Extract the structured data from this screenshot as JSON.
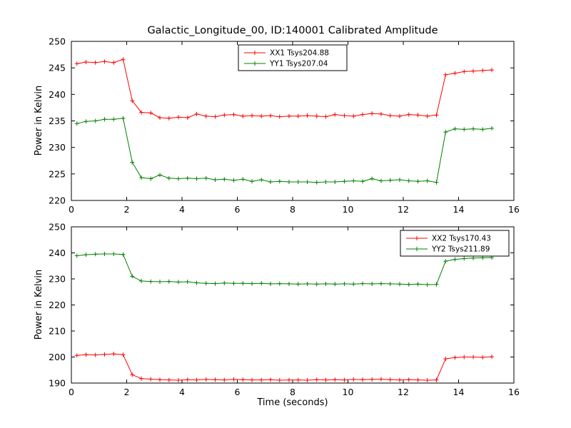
{
  "figure": {
    "title": "Galactic_Longitude_00, ID:140001 Calibrated Amplitude",
    "xlabel": "Time (seconds)",
    "background": "#ffffff",
    "axis_color": "#000000"
  },
  "chart_data": [
    {
      "type": "line",
      "ylabel": "Power in Kelvin",
      "xlim": [
        0,
        16
      ],
      "ylim": [
        220,
        250
      ],
      "xticks": [
        0,
        2,
        4,
        6,
        8,
        10,
        12,
        14,
        16
      ],
      "yticks": [
        220,
        225,
        230,
        235,
        240,
        245,
        250
      ],
      "grid": false,
      "legend_position": "upper center",
      "marker": "+",
      "x": [
        0.2,
        0.53,
        0.87,
        1.2,
        1.53,
        1.87,
        2.2,
        2.53,
        2.87,
        3.2,
        3.53,
        3.87,
        4.2,
        4.53,
        4.87,
        5.2,
        5.53,
        5.87,
        6.2,
        6.53,
        6.87,
        7.2,
        7.53,
        7.87,
        8.2,
        8.53,
        8.87,
        9.2,
        9.53,
        9.87,
        10.2,
        10.53,
        10.87,
        11.2,
        11.53,
        11.87,
        12.2,
        12.53,
        12.87,
        13.2,
        13.53,
        13.87,
        14.2,
        14.53,
        14.87,
        15.2
      ],
      "series": [
        {
          "name": "XX1 Tsys204.88",
          "color": "#ff0000",
          "values": [
            245.8,
            246.1,
            246.0,
            246.2,
            246.0,
            246.6,
            238.8,
            236.6,
            236.5,
            235.6,
            235.5,
            235.7,
            235.6,
            236.3,
            235.9,
            235.8,
            236.1,
            236.2,
            235.9,
            236.0,
            235.9,
            236.0,
            235.8,
            235.9,
            235.9,
            236.0,
            235.9,
            235.8,
            236.2,
            236.0,
            235.9,
            236.2,
            236.4,
            236.3,
            236.0,
            235.9,
            236.2,
            236.1,
            235.9,
            236.1,
            243.7,
            244.0,
            244.3,
            244.4,
            244.5,
            244.6
          ]
        },
        {
          "name": "YY1 Tsys207.04",
          "color": "#008000",
          "values": [
            234.5,
            234.9,
            235.0,
            235.3,
            235.3,
            235.5,
            227.2,
            224.3,
            224.1,
            224.8,
            224.2,
            224.1,
            224.2,
            224.1,
            224.2,
            223.9,
            224.0,
            223.8,
            224.0,
            223.6,
            223.9,
            223.5,
            223.6,
            223.5,
            223.5,
            223.5,
            223.4,
            223.5,
            223.5,
            223.6,
            223.7,
            223.6,
            224.1,
            223.7,
            223.8,
            223.9,
            223.7,
            223.6,
            223.7,
            223.4,
            232.9,
            233.5,
            233.4,
            233.5,
            233.4,
            233.6
          ]
        }
      ]
    },
    {
      "type": "line",
      "ylabel": "Power in Kelvin",
      "xlabel": "Time (seconds)",
      "xlim": [
        0,
        16
      ],
      "ylim": [
        190,
        250
      ],
      "xticks": [
        0,
        2,
        4,
        6,
        8,
        10,
        12,
        14,
        16
      ],
      "yticks": [
        190,
        200,
        210,
        220,
        230,
        240,
        250
      ],
      "grid": false,
      "legend_position": "upper right",
      "marker": "+",
      "x": [
        0.2,
        0.53,
        0.87,
        1.2,
        1.53,
        1.87,
        2.2,
        2.53,
        2.87,
        3.2,
        3.53,
        3.87,
        4.2,
        4.53,
        4.87,
        5.2,
        5.53,
        5.87,
        6.2,
        6.53,
        6.87,
        7.2,
        7.53,
        7.87,
        8.2,
        8.53,
        8.87,
        9.2,
        9.53,
        9.87,
        10.2,
        10.53,
        10.87,
        11.2,
        11.53,
        11.87,
        12.2,
        12.53,
        12.87,
        13.2,
        13.53,
        13.87,
        14.2,
        14.53,
        14.87,
        15.2
      ],
      "series": [
        {
          "name": "XX2 Tsys170.43",
          "color": "#ff0000",
          "values": [
            200.6,
            200.9,
            200.8,
            201.0,
            201.2,
            200.9,
            193.2,
            191.7,
            191.5,
            191.3,
            191.2,
            191.1,
            191.3,
            191.2,
            191.4,
            191.3,
            191.2,
            191.4,
            191.3,
            191.2,
            191.2,
            191.3,
            191.1,
            191.2,
            191.2,
            191.1,
            191.3,
            191.2,
            191.3,
            191.2,
            191.4,
            191.3,
            191.4,
            191.5,
            191.3,
            191.2,
            191.3,
            191.2,
            191.1,
            191.2,
            199.3,
            199.8,
            200.0,
            200.0,
            199.9,
            200.1
          ]
        },
        {
          "name": "YY2 Tsys211.89",
          "color": "#008000",
          "values": [
            238.9,
            239.3,
            239.5,
            239.6,
            239.6,
            239.4,
            231.0,
            229.2,
            229.0,
            228.9,
            229.0,
            228.8,
            228.9,
            228.5,
            228.3,
            228.2,
            228.4,
            228.3,
            228.3,
            228.2,
            228.3,
            228.1,
            228.2,
            228.1,
            228.0,
            228.1,
            228.0,
            228.1,
            228.0,
            228.1,
            228.0,
            228.2,
            228.1,
            228.2,
            228.1,
            228.0,
            227.9,
            228.0,
            227.8,
            227.9,
            236.8,
            237.5,
            237.8,
            238.0,
            238.1,
            238.2
          ]
        }
      ]
    }
  ]
}
